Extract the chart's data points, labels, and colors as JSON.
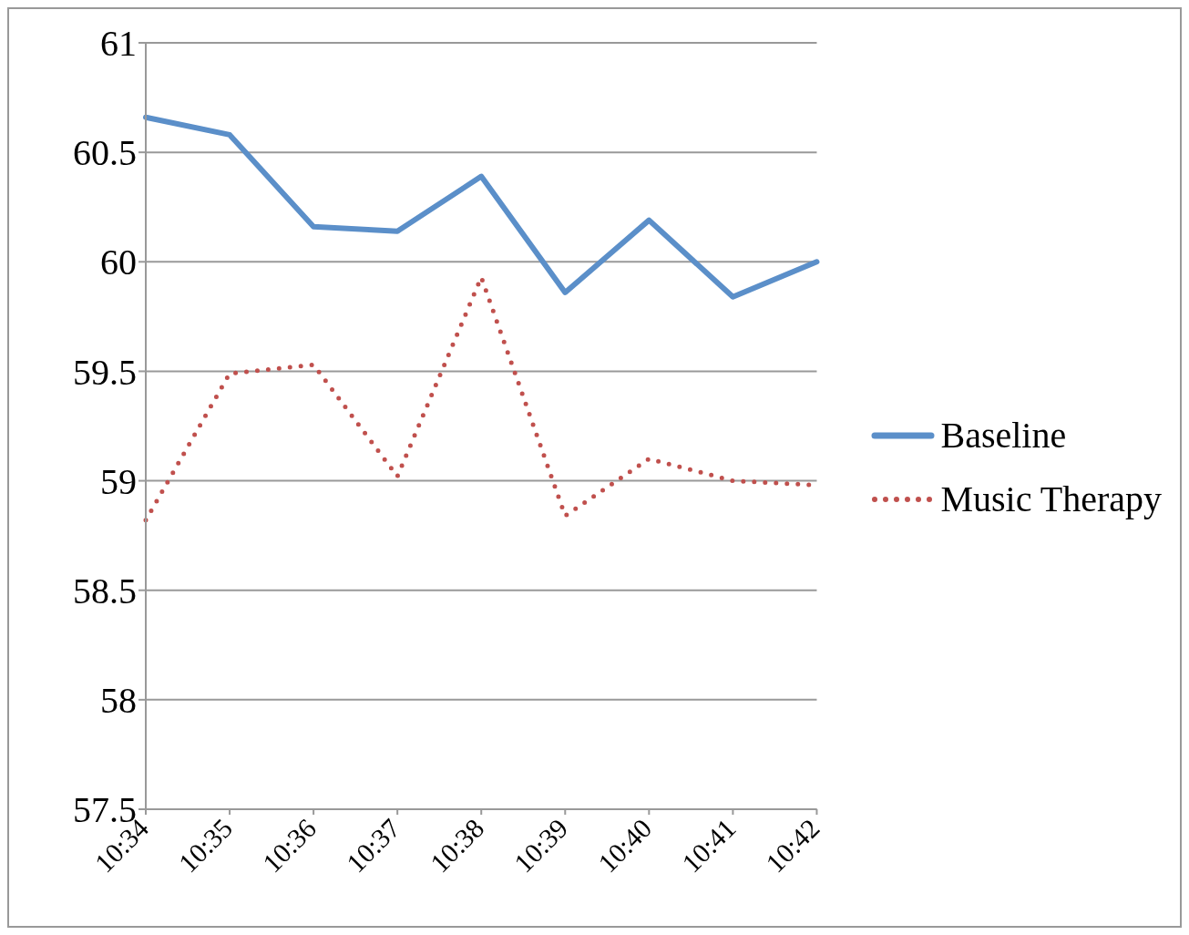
{
  "chart_data": {
    "type": "line",
    "categories": [
      "10:34",
      "10:35",
      "10:36",
      "10:37",
      "10:38",
      "10:39",
      "10:40",
      "10:41",
      "10:42"
    ],
    "series": [
      {
        "name": "Baseline",
        "color": "#5b8fc9",
        "line_style": "solid",
        "values": [
          60.66,
          60.58,
          60.16,
          60.14,
          60.39,
          59.86,
          60.19,
          59.84,
          60.0
        ]
      },
      {
        "name": "Music Therapy",
        "color": "#c0504d",
        "line_style": "dotted",
        "values": [
          58.82,
          59.49,
          59.53,
          59.02,
          59.93,
          58.84,
          59.1,
          59.0,
          58.98
        ]
      }
    ],
    "ylim": [
      57.5,
      61
    ],
    "yticks": [
      57.5,
      58,
      58.5,
      59,
      59.5,
      60,
      60.5,
      61
    ],
    "grid": "y",
    "legend": "right",
    "marker": "none"
  }
}
